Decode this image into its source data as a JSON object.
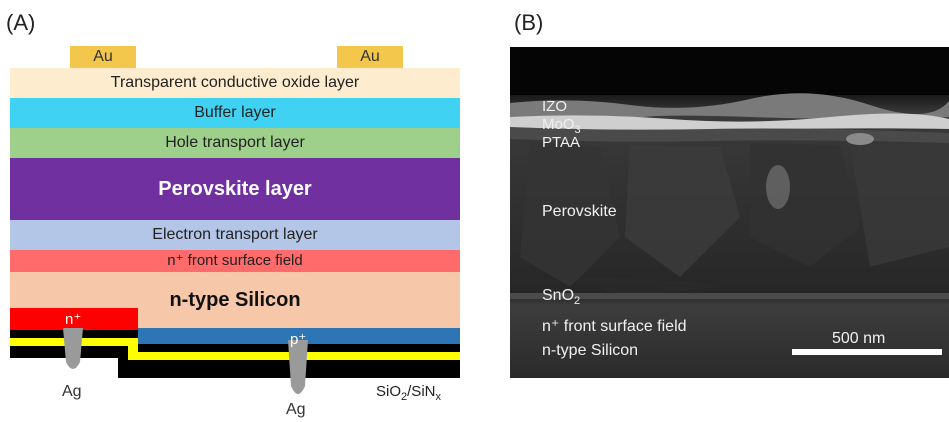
{
  "panel_a": {
    "label": "(A)",
    "au_left": "Au",
    "au_right": "Au",
    "layers": {
      "tco": "Transparent conductive oxide layer",
      "buffer": "Buffer layer",
      "htl": "Hole transport layer",
      "perovskite": "Perovskite layer",
      "etl": "Electron transport layer",
      "front_surface_field": "n⁺ front surface field",
      "silicon": "n-type Silicon"
    },
    "n_plus": "n⁺",
    "p_plus": "p⁺",
    "ag_left": "Ag",
    "ag_right": "Ag",
    "passivation_base": "SiO",
    "passivation_sub": "2",
    "passivation_mid": "/SiN",
    "passivation_sub2": "x"
  },
  "panel_b": {
    "label": "(B)",
    "izo": "IZO",
    "moo3_base": "MoO",
    "moo3_sub": "3",
    "ptaa": "PTAA",
    "perovskite": "Perovskite",
    "sno2_base": "SnO",
    "sno2_sub": "2",
    "front_surface_field": "n⁺ front surface field",
    "silicon": "n-type Silicon",
    "scale_bar": "500 nm"
  },
  "colors": {
    "au": "#f2c74c",
    "tco": "#fdeccd",
    "buffer": "#3fd2f2",
    "htl": "#9ed08b",
    "perovskite": "#7030a0",
    "etl": "#b4c6e7",
    "front_surface_field": "#ff6b6b",
    "silicon": "#f6c7a8",
    "n_plus": "#ff0000",
    "p_plus": "#2e75b6",
    "passivation_yellow": "#ffff00",
    "rear": "#000000",
    "ag": "#9a9a9a"
  }
}
